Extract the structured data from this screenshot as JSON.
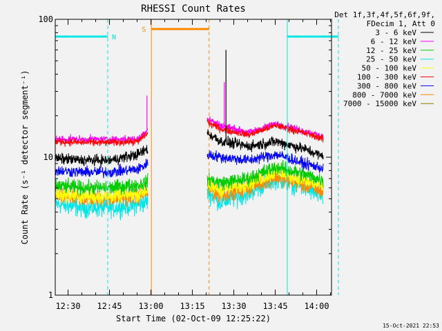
{
  "chart_data": {
    "type": "line",
    "title": "RHESSI Count Rates",
    "xlabel": "Start Time (02-Oct-09 12:25:22)",
    "ylabel": "Count Rate (s⁻¹ detector segment⁻¹)",
    "x_unit": "minutes after 12:25:22 (02-Oct-09)",
    "xlim": [
      0,
      100
    ],
    "ylim": [
      1,
      100
    ],
    "y_scale": "log",
    "x_ticks": [
      {
        "value": 4.63,
        "label": "12:30"
      },
      {
        "value": 19.63,
        "label": "12:45"
      },
      {
        "value": 34.63,
        "label": "13:00"
      },
      {
        "value": 49.63,
        "label": "13:15"
      },
      {
        "value": 64.63,
        "label": "13:30"
      },
      {
        "value": 79.63,
        "label": "13:45"
      },
      {
        "value": 94.63,
        "label": "14:00"
      }
    ],
    "y_ticks": [
      {
        "value": 1,
        "label": "1"
      },
      {
        "value": 10,
        "label": "10"
      },
      {
        "value": 100,
        "label": "100"
      }
    ],
    "legend_position": "top-right",
    "legend_header": [
      "Det 1f,3f,4f,5f,6f,9f,",
      "FDecim 1, Att 0"
    ],
    "data_gap": [
      33.5,
      55.0
    ],
    "series": [
      {
        "name": "3 - 6 keV",
        "color": "#000000",
        "x": [
          0,
          10,
          20,
          30,
          33.5,
          55,
          60,
          70,
          80,
          90,
          100
        ],
        "y": [
          9.8,
          9.5,
          9.5,
          10.5,
          11.5,
          15,
          13,
          12,
          13,
          11.5,
          9.5
        ]
      },
      {
        "name": "6 - 12 keV",
        "color": "#ff00ff",
        "x": [
          0,
          10,
          20,
          30,
          33.5,
          55,
          60,
          70,
          80,
          90,
          100
        ],
        "y": [
          13.5,
          13.5,
          13.5,
          13.5,
          16,
          19,
          17,
          15,
          17.5,
          15.5,
          13.5
        ]
      },
      {
        "name": "12 - 25 keV",
        "color": "#00cc00",
        "x": [
          0,
          10,
          20,
          30,
          33.5,
          55,
          60,
          70,
          80,
          90,
          100
        ],
        "y": [
          6.2,
          6.0,
          6.0,
          6.3,
          6.6,
          7.0,
          6.5,
          7.0,
          8.5,
          7.5,
          6.5
        ]
      },
      {
        "name": "25 - 50 keV",
        "color": "#00e5e5",
        "x": [
          0,
          10,
          20,
          30,
          33.5,
          55,
          60,
          70,
          80,
          90,
          100
        ],
        "y": [
          4.6,
          4.3,
          4.3,
          4.5,
          4.8,
          5.6,
          4.7,
          5.5,
          7.0,
          6.0,
          4.8
        ]
      },
      {
        "name": "50 - 100 keV",
        "color": "#ffff00",
        "x": [
          0,
          10,
          20,
          30,
          33.5,
          55,
          60,
          70,
          80,
          90,
          100
        ],
        "y": [
          5.4,
          5.2,
          5.2,
          5.4,
          5.8,
          6.2,
          5.8,
          6.4,
          7.8,
          6.8,
          5.8
        ]
      },
      {
        "name": "100 - 300 keV",
        "color": "#ff0000",
        "x": [
          0,
          10,
          20,
          30,
          33.5,
          55,
          60,
          70,
          80,
          90,
          100
        ],
        "y": [
          13.0,
          12.8,
          12.8,
          13.0,
          15,
          18,
          16,
          14.5,
          17,
          15,
          13
        ]
      },
      {
        "name": "300 - 800 keV",
        "color": "#0000ff",
        "x": [
          0,
          10,
          20,
          30,
          33.5,
          55,
          60,
          70,
          80,
          90,
          100
        ],
        "y": [
          8.0,
          7.8,
          7.8,
          8.2,
          9.0,
          10.5,
          10,
          9.5,
          10.5,
          9,
          8
        ]
      },
      {
        "name": "800 - 7000 keV",
        "color": "#ff8800",
        "x": [
          0,
          10,
          20,
          30,
          33.5,
          55,
          60,
          70,
          80,
          90,
          100
        ],
        "y": [
          5.2,
          5.0,
          5.0,
          5.2,
          5.6,
          5.9,
          5.3,
          6.0,
          7.2,
          6.3,
          5.3
        ]
      },
      {
        "name": "7000 - 15000 keV",
        "color": "#8b7a00",
        "x": [],
        "y": []
      }
    ],
    "spikes": [
      {
        "series": "3 - 6 keV",
        "x": 61.8,
        "y": 60
      },
      {
        "series": "6 - 12 keV",
        "x": 61.2,
        "y": 35
      },
      {
        "series": "6 - 12 keV",
        "x": 33.2,
        "y": 28
      }
    ],
    "annotations": [
      {
        "label": "N",
        "color": "#00e5e5",
        "type": "night",
        "bar": [
          0,
          19.0
        ],
        "y": 75,
        "lines": [
          0,
          19.0
        ],
        "line_styles": [
          "solid",
          "dashed"
        ]
      },
      {
        "label": "S",
        "color": "#ff8800",
        "type": "saa",
        "bar": [
          34.8,
          55.7
        ],
        "y": 85,
        "lines": [
          34.8,
          55.7
        ],
        "line_styles": [
          "solid",
          "dashed"
        ]
      },
      {
        "label": "",
        "color": "#00e5e5",
        "type": "night",
        "bar": [
          84.0,
          102.5
        ],
        "y": 75,
        "lines": [
          84.0,
          102.5
        ],
        "line_styles": [
          "solid",
          "dashed"
        ]
      }
    ]
  },
  "footer": {
    "timestamp": "15-Oct-2021 22:53"
  }
}
